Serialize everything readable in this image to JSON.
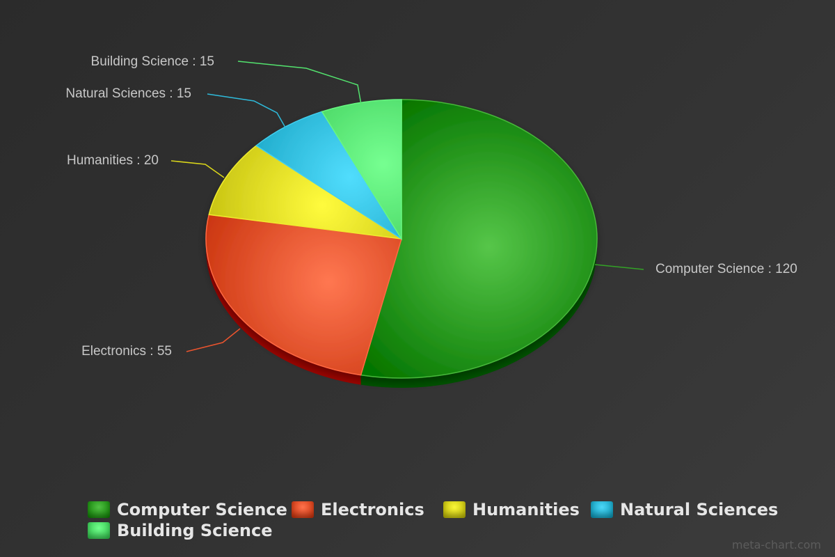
{
  "chart_data": {
    "type": "pie",
    "title": "",
    "categories": [
      "Computer Science",
      "Electronics",
      "Humanities",
      "Natural Sciences",
      "Building Science"
    ],
    "values": [
      120,
      55,
      20,
      15,
      15
    ],
    "colors": [
      "#1f8f12",
      "#d8401a",
      "#c8c406",
      "#1aa6c6",
      "#3fcf5a"
    ],
    "label_separator": " : ",
    "legend_position": "bottom",
    "legend": [
      "Computer Science",
      "Electronics",
      "Humanities",
      "Natural Sciences",
      "Building Science"
    ]
  },
  "watermark": "meta-chart.com"
}
